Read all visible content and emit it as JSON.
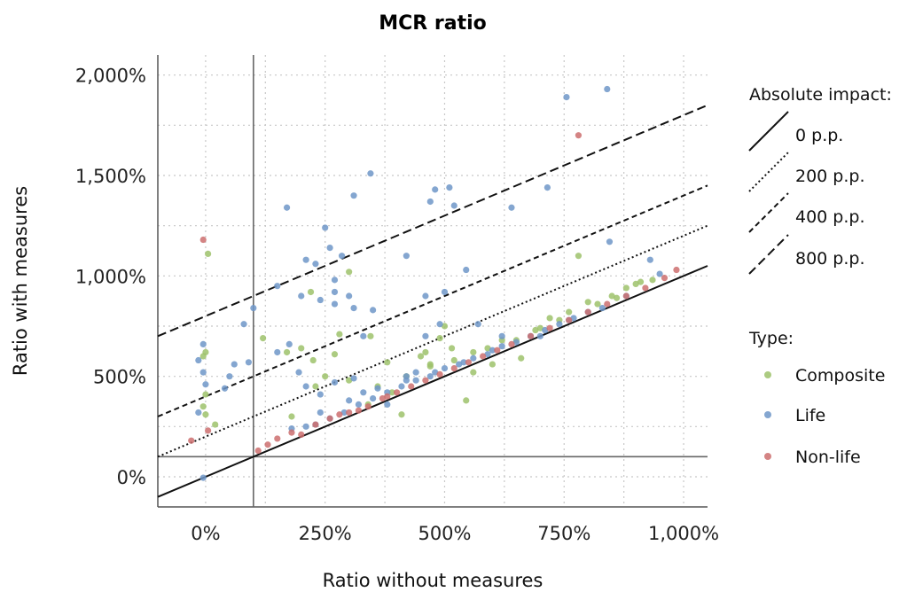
{
  "chart_data": {
    "type": "scatter",
    "title": "MCR ratio",
    "xlabel": "Ratio without measures",
    "ylabel": "Ratio with measures",
    "xlim": [
      -100,
      1050
    ],
    "ylim": [
      -150,
      2100
    ],
    "xticks": [
      0,
      250,
      500,
      750,
      1000
    ],
    "xtick_labels": [
      "0%",
      "250%",
      "500%",
      "750%",
      "1,000%"
    ],
    "yticks": [
      0,
      500,
      1000,
      1500,
      2000
    ],
    "ytick_labels": [
      "0%",
      "500%",
      "1,000%",
      "1,500%",
      "2,000%"
    ],
    "grid": true,
    "reference_lines": {
      "x": 100,
      "y": 100
    },
    "impact_lines": [
      {
        "label": "0 p.p.",
        "offset": 0,
        "style": "solid"
      },
      {
        "label": "200 p.p.",
        "offset": 200,
        "style": "dotted"
      },
      {
        "label": "400 p.p.",
        "offset": 400,
        "style": "dashed"
      },
      {
        "label": "800 p.p.",
        "offset": 800,
        "style": "longdash"
      }
    ],
    "legend": {
      "placement": "right",
      "impact_title": "Absolute impact:",
      "type_title": "Type:"
    },
    "colors": {
      "Composite": "#9dc26b",
      "Life": "#6f96c8",
      "Non-life": "#cc6f6f"
    },
    "series": [
      {
        "name": "Composite",
        "points": [
          [
            5,
            1110
          ],
          [
            0,
            620
          ],
          [
            -5,
            600
          ],
          [
            -5,
            350
          ],
          [
            0,
            310
          ],
          [
            20,
            260
          ],
          [
            0,
            410
          ],
          [
            120,
            690
          ],
          [
            170,
            620
          ],
          [
            200,
            640
          ],
          [
            225,
            580
          ],
          [
            230,
            450
          ],
          [
            270,
            610
          ],
          [
            280,
            710
          ],
          [
            300,
            1020
          ],
          [
            345,
            700
          ],
          [
            220,
            920
          ],
          [
            390,
            420
          ],
          [
            360,
            450
          ],
          [
            410,
            310
          ],
          [
            460,
            620
          ],
          [
            490,
            690
          ],
          [
            500,
            750
          ],
          [
            515,
            640
          ],
          [
            545,
            380
          ],
          [
            470,
            560
          ],
          [
            560,
            520
          ],
          [
            600,
            560
          ],
          [
            660,
            590
          ],
          [
            780,
            1100
          ],
          [
            690,
            730
          ],
          [
            720,
            790
          ],
          [
            760,
            820
          ],
          [
            800,
            870
          ],
          [
            850,
            900
          ],
          [
            880,
            940
          ],
          [
            900,
            960
          ],
          [
            935,
            980
          ],
          [
            180,
            300
          ],
          [
            300,
            480
          ],
          [
            340,
            360
          ],
          [
            420,
            500
          ],
          [
            470,
            550
          ],
          [
            520,
            580
          ],
          [
            560,
            620
          ],
          [
            590,
            640
          ],
          [
            620,
            680
          ],
          [
            650,
            680
          ],
          [
            700,
            740
          ],
          [
            740,
            780
          ],
          [
            820,
            860
          ],
          [
            860,
            890
          ],
          [
            910,
            970
          ],
          [
            450,
            600
          ],
          [
            380,
            570
          ],
          [
            250,
            500
          ]
        ]
      },
      {
        "name": "Life",
        "points": [
          [
            -5,
            660
          ],
          [
            -15,
            580
          ],
          [
            -5,
            520
          ],
          [
            0,
            460
          ],
          [
            40,
            440
          ],
          [
            50,
            500
          ],
          [
            60,
            560
          ],
          [
            90,
            570
          ],
          [
            -15,
            320
          ],
          [
            -5,
            -5
          ],
          [
            80,
            760
          ],
          [
            100,
            840
          ],
          [
            170,
            1340
          ],
          [
            250,
            1240
          ],
          [
            260,
            1140
          ],
          [
            285,
            1100
          ],
          [
            310,
            1400
          ],
          [
            345,
            1510
          ],
          [
            210,
            1080
          ],
          [
            230,
            1060
          ],
          [
            150,
            950
          ],
          [
            200,
            900
          ],
          [
            240,
            880
          ],
          [
            270,
            980
          ],
          [
            270,
            920
          ],
          [
            270,
            860
          ],
          [
            300,
            900
          ],
          [
            310,
            840
          ],
          [
            330,
            700
          ],
          [
            150,
            620
          ],
          [
            175,
            660
          ],
          [
            195,
            520
          ],
          [
            210,
            450
          ],
          [
            350,
            830
          ],
          [
            420,
            1100
          ],
          [
            470,
            1370
          ],
          [
            480,
            1430
          ],
          [
            510,
            1440
          ],
          [
            520,
            1350
          ],
          [
            545,
            1030
          ],
          [
            640,
            1340
          ],
          [
            715,
            1440
          ],
          [
            755,
            1890
          ],
          [
            840,
            1930
          ],
          [
            845,
            1170
          ],
          [
            930,
            1080
          ],
          [
            950,
            1010
          ],
          [
            500,
            920
          ],
          [
            460,
            900
          ],
          [
            240,
            410
          ],
          [
            270,
            470
          ],
          [
            310,
            490
          ],
          [
            330,
            420
          ],
          [
            380,
            360
          ],
          [
            420,
            500
          ],
          [
            440,
            520
          ],
          [
            490,
            760
          ],
          [
            460,
            700
          ],
          [
            570,
            760
          ],
          [
            620,
            700
          ],
          [
            700,
            700
          ],
          [
            760,
            780
          ],
          [
            830,
            840
          ],
          [
            880,
            900
          ],
          [
            180,
            240
          ],
          [
            210,
            250
          ],
          [
            230,
            260
          ],
          [
            260,
            290
          ],
          [
            290,
            320
          ],
          [
            320,
            360
          ],
          [
            350,
            390
          ],
          [
            380,
            420
          ],
          [
            410,
            450
          ],
          [
            440,
            480
          ],
          [
            470,
            500
          ],
          [
            500,
            540
          ],
          [
            530,
            560
          ],
          [
            560,
            590
          ],
          [
            590,
            610
          ],
          [
            620,
            650
          ],
          [
            650,
            670
          ],
          [
            680,
            700
          ],
          [
            710,
            730
          ],
          [
            740,
            760
          ],
          [
            770,
            790
          ],
          [
            800,
            820
          ],
          [
            240,
            320
          ],
          [
            300,
            380
          ],
          [
            360,
            440
          ],
          [
            420,
            480
          ],
          [
            480,
            520
          ],
          [
            540,
            570
          ],
          [
            600,
            630
          ]
        ]
      },
      {
        "name": "Non-life",
        "points": [
          [
            -5,
            1180
          ],
          [
            -30,
            180
          ],
          [
            5,
            230
          ],
          [
            180,
            220
          ],
          [
            230,
            260
          ],
          [
            260,
            290
          ],
          [
            300,
            320
          ],
          [
            340,
            350
          ],
          [
            370,
            390
          ],
          [
            400,
            420
          ],
          [
            430,
            450
          ],
          [
            460,
            480
          ],
          [
            490,
            510
          ],
          [
            520,
            540
          ],
          [
            550,
            570
          ],
          [
            580,
            600
          ],
          [
            610,
            630
          ],
          [
            640,
            660
          ],
          [
            680,
            700
          ],
          [
            720,
            740
          ],
          [
            760,
            780
          ],
          [
            800,
            820
          ],
          [
            840,
            860
          ],
          [
            880,
            900
          ],
          [
            920,
            940
          ],
          [
            960,
            990
          ],
          [
            985,
            1030
          ],
          [
            780,
            1700
          ],
          [
            130,
            160
          ],
          [
            150,
            190
          ],
          [
            110,
            130
          ],
          [
            200,
            210
          ],
          [
            280,
            310
          ],
          [
            320,
            330
          ],
          [
            380,
            400
          ]
        ]
      }
    ]
  }
}
